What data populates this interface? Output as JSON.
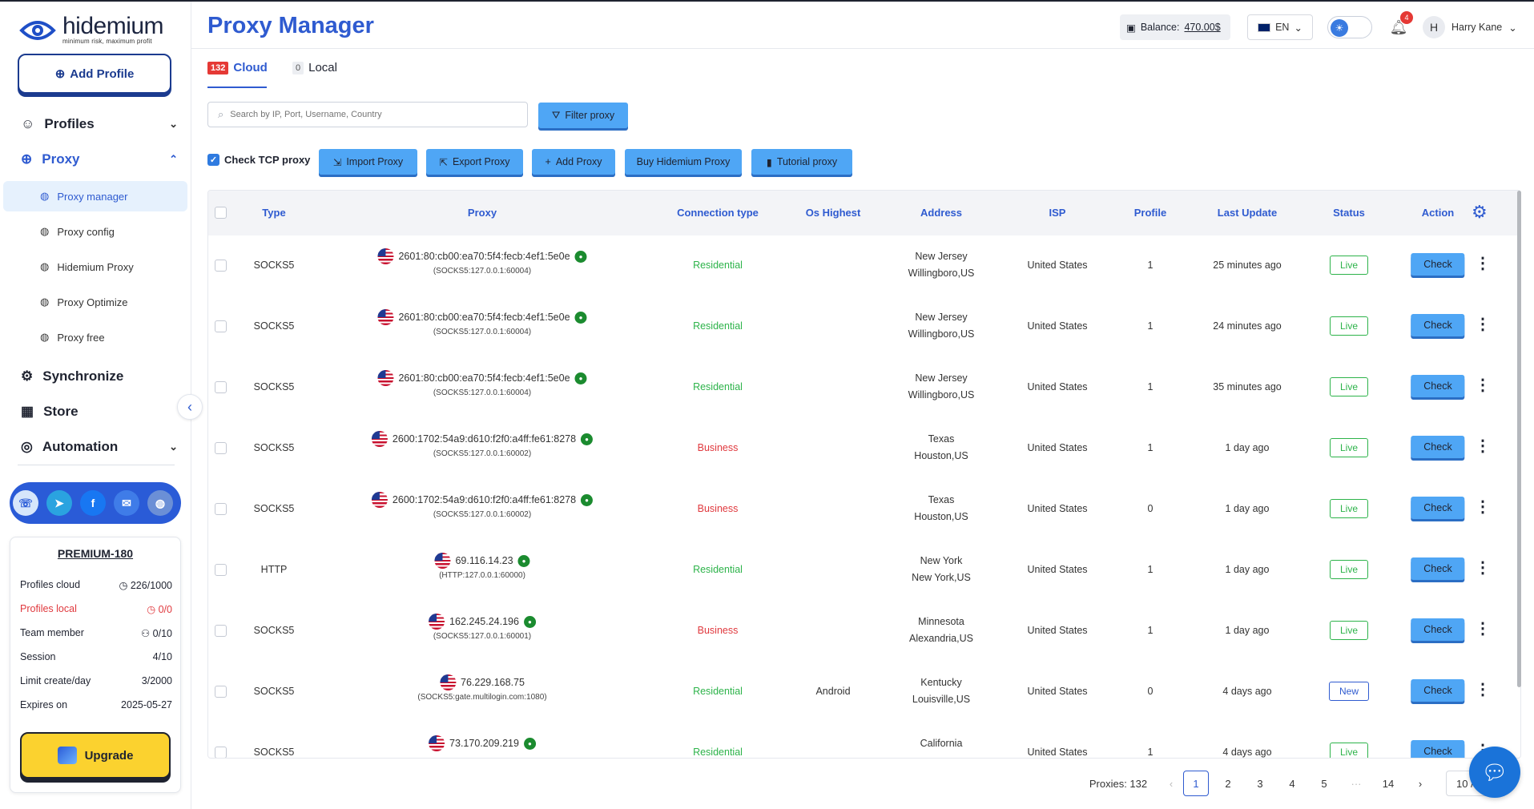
{
  "brand": {
    "name": "hidemium",
    "tagline": "minimum risk, maximum profit"
  },
  "sidebar": {
    "add_profile": "Add Profile",
    "items": [
      {
        "label": "Profiles",
        "icon": "smile-icon",
        "chevron": "chevron-down-icon"
      },
      {
        "label": "Proxy",
        "icon": "globe-icon",
        "chevron": "chevron-up-icon"
      },
      {
        "label": "Synchronize",
        "icon": "sync-icon"
      },
      {
        "label": "Store",
        "icon": "store-icon"
      },
      {
        "label": "Automation",
        "icon": "automation-icon",
        "chevron": "chevron-down-icon"
      }
    ],
    "proxy_sub": [
      "Proxy manager",
      "Proxy config",
      "Hidemium Proxy",
      "Proxy Optimize",
      "Proxy free"
    ],
    "social": [
      "support-icon",
      "telegram-icon",
      "facebook-icon",
      "mail-icon",
      "web-icon"
    ]
  },
  "plan": {
    "title": "PREMIUM-180",
    "rows": [
      {
        "label": "Profiles cloud",
        "value": "226/1000"
      },
      {
        "label": "Profiles local",
        "value": "0/0"
      },
      {
        "label": "Team member",
        "value": "0/10"
      },
      {
        "label": "Session",
        "value": "4/10"
      },
      {
        "label": "Limit create/day",
        "value": "3/2000"
      },
      {
        "label": "Expires on",
        "value": "2025-05-27"
      }
    ],
    "upgrade": "Upgrade"
  },
  "header": {
    "title": "Proxy Manager",
    "balance_label": "Balance:",
    "balance_value": "470.00$",
    "lang": "EN",
    "notifications": "4",
    "avatar_letter": "H",
    "user_name": "Harry Kane"
  },
  "tabs": {
    "cloud": {
      "label": "Cloud",
      "count": "132"
    },
    "local": {
      "label": "Local",
      "count": "0"
    }
  },
  "toolbar": {
    "search_placeholder": "Search by IP, Port, Username, Country",
    "filter": "Filter proxy",
    "check_tcp": "Check TCP proxy",
    "import": "Import Proxy",
    "export": "Export Proxy",
    "add": "Add Proxy",
    "buy": "Buy Hidemium Proxy",
    "tutorial": "Tutorial proxy"
  },
  "table": {
    "headers": [
      "Type",
      "Proxy",
      "Connection type",
      "Os Highest",
      "Address",
      "ISP",
      "Profile",
      "Last Update",
      "Status",
      "Action"
    ],
    "rows": [
      {
        "type": "SOCKS5",
        "proxy": "2601:80:cb00:ea70:5f4:fecb:4ef1:5e0e",
        "raw": "(SOCKS5:127.0.0.1:60004)",
        "conn": "Residential",
        "os": "",
        "addr1": "New Jersey",
        "addr2": "Willingboro,US",
        "isp": "United States",
        "profile": "1",
        "update": "25 minutes ago",
        "status": "Live"
      },
      {
        "type": "SOCKS5",
        "proxy": "2601:80:cb00:ea70:5f4:fecb:4ef1:5e0e",
        "raw": "(SOCKS5:127.0.0.1:60004)",
        "conn": "Residential",
        "os": "",
        "addr1": "New Jersey",
        "addr2": "Willingboro,US",
        "isp": "United States",
        "profile": "1",
        "update": "24 minutes ago",
        "status": "Live"
      },
      {
        "type": "SOCKS5",
        "proxy": "2601:80:cb00:ea70:5f4:fecb:4ef1:5e0e",
        "raw": "(SOCKS5:127.0.0.1:60004)",
        "conn": "Residential",
        "os": "",
        "addr1": "New Jersey",
        "addr2": "Willingboro,US",
        "isp": "United States",
        "profile": "1",
        "update": "35 minutes ago",
        "status": "Live"
      },
      {
        "type": "SOCKS5",
        "proxy": "2600:1702:54a9:d610:f2f0:a4ff:fe61:8278",
        "raw": "(SOCKS5:127.0.0.1:60002)",
        "conn": "Business",
        "os": "",
        "addr1": "Texas",
        "addr2": "Houston,US",
        "isp": "United States",
        "profile": "1",
        "update": "1 day ago",
        "status": "Live"
      },
      {
        "type": "SOCKS5",
        "proxy": "2600:1702:54a9:d610:f2f0:a4ff:fe61:8278",
        "raw": "(SOCKS5:127.0.0.1:60002)",
        "conn": "Business",
        "os": "",
        "addr1": "Texas",
        "addr2": "Houston,US",
        "isp": "United States",
        "profile": "0",
        "update": "1 day ago",
        "status": "Live"
      },
      {
        "type": "HTTP",
        "proxy": "69.116.14.23",
        "raw": "(HTTP:127.0.0.1:60000)",
        "conn": "Residential",
        "os": "",
        "addr1": "New York",
        "addr2": "New York,US",
        "isp": "United States",
        "profile": "1",
        "update": "1 day ago",
        "status": "Live"
      },
      {
        "type": "SOCKS5",
        "proxy": "162.245.24.196",
        "raw": "(SOCKS5:127.0.0.1:60001)",
        "conn": "Business",
        "os": "",
        "addr1": "Minnesota",
        "addr2": "Alexandria,US",
        "isp": "United States",
        "profile": "1",
        "update": "1 day ago",
        "status": "Live"
      },
      {
        "type": "SOCKS5",
        "proxy": "76.229.168.75",
        "raw": "(SOCKS5:gate.multilogin.com:1080)",
        "conn": "Residential",
        "os": "Android",
        "addr1": "Kentucky",
        "addr2": "Louisville,US",
        "isp": "United States",
        "profile": "0",
        "update": "4 days ago",
        "status": "New",
        "no_dot": true
      },
      {
        "type": "SOCKS5",
        "proxy": "73.170.209.219",
        "raw": "",
        "conn": "Residential",
        "os": "",
        "addr1": "California",
        "addr2": "",
        "isp": "United States",
        "profile": "1",
        "update": "4 days ago",
        "status": "Live"
      }
    ],
    "check_label": "Check"
  },
  "pagination": {
    "total_label": "Proxies: 132",
    "pages": [
      "1",
      "2",
      "3",
      "4",
      "5",
      "···",
      "14"
    ],
    "current": "1",
    "page_size": "10 /"
  }
}
